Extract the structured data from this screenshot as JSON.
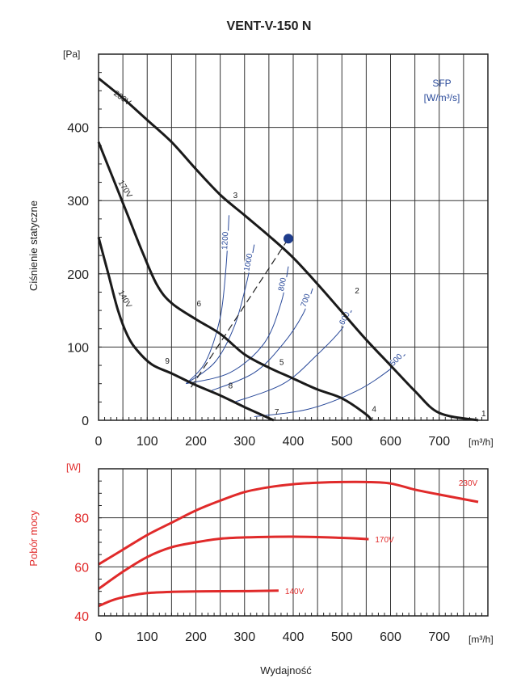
{
  "title": "VENT-V-150 N",
  "x_label": "Wydajność",
  "x_unit": "[m³/h]",
  "chart_data": [
    {
      "type": "line",
      "name": "pressure",
      "ylabel": "Ciśnienie statyczne",
      "y_unit": "[Pa]",
      "xlim": [
        0,
        800
      ],
      "ylim": [
        0,
        500
      ],
      "x_ticks": [
        0,
        100,
        200,
        300,
        400,
        500,
        600,
        700
      ],
      "y_ticks": [
        0,
        100,
        200,
        300,
        400
      ],
      "grid": true,
      "series": [
        {
          "name": "230V",
          "points": [
            [
              0,
              467
            ],
            [
              50,
              440
            ],
            [
              100,
              410
            ],
            [
              150,
              380
            ],
            [
              200,
              343
            ],
            [
              250,
              308
            ],
            [
              300,
              280
            ],
            [
              350,
              252
            ],
            [
              400,
              222
            ],
            [
              450,
              186
            ],
            [
              500,
              148
            ],
            [
              550,
              110
            ],
            [
              600,
              75
            ],
            [
              650,
              40
            ],
            [
              700,
              10
            ],
            [
              780,
              0
            ]
          ]
        },
        {
          "name": "170V",
          "points": [
            [
              0,
              380
            ],
            [
              30,
              330
            ],
            [
              60,
              280
            ],
            [
              90,
              230
            ],
            [
              120,
              185
            ],
            [
              150,
              160
            ],
            [
              200,
              138
            ],
            [
              250,
              118
            ],
            [
              300,
              90
            ],
            [
              350,
              72
            ],
            [
              400,
              57
            ],
            [
              450,
              42
            ],
            [
              500,
              30
            ],
            [
              550,
              8
            ],
            [
              560,
              0
            ]
          ]
        },
        {
          "name": "140V",
          "points": [
            [
              0,
              250
            ],
            [
              20,
              200
            ],
            [
              40,
              150
            ],
            [
              60,
              115
            ],
            [
              80,
              95
            ],
            [
              110,
              76
            ],
            [
              150,
              64
            ],
            [
              200,
              48
            ],
            [
              250,
              34
            ],
            [
              300,
              18
            ],
            [
              360,
              0
            ]
          ]
        }
      ],
      "operating_points": [
        {
          "label": "1",
          "x": 780,
          "y": 0
        },
        {
          "label": "2",
          "x": 520,
          "y": 168
        },
        {
          "label": "3",
          "x": 270,
          "y": 298
        },
        {
          "label": "4",
          "x": 555,
          "y": 6
        },
        {
          "label": "5",
          "x": 365,
          "y": 70
        },
        {
          "label": "6",
          "x": 195,
          "y": 150
        },
        {
          "label": "7",
          "x": 355,
          "y": 2
        },
        {
          "label": "8",
          "x": 260,
          "y": 38
        },
        {
          "label": "9",
          "x": 130,
          "y": 72
        }
      ],
      "sfp": {
        "label_line1": "SFP",
        "label_line2": "[W/m³/s]",
        "curves": [
          {
            "value": "1200",
            "points": [
              [
                180,
                50
              ],
              [
                220,
                80
              ],
              [
                250,
                140
              ],
              [
                262,
                210
              ],
              [
                268,
                280
              ]
            ]
          },
          {
            "value": "1000",
            "points": [
              [
                180,
                50
              ],
              [
                240,
                80
              ],
              [
                280,
                130
              ],
              [
                305,
                190
              ],
              [
                320,
                240
              ]
            ]
          },
          {
            "value": "800",
            "points": [
              [
                180,
                50
              ],
              [
                270,
                65
              ],
              [
                340,
                105
              ],
              [
                375,
                160
              ],
              [
                390,
                210
              ]
            ]
          },
          {
            "value": "700",
            "points": [
              [
                230,
                40
              ],
              [
                320,
                65
              ],
              [
                380,
                105
              ],
              [
                420,
                145
              ],
              [
                440,
                180
              ]
            ]
          },
          {
            "value": "600",
            "points": [
              [
                280,
                25
              ],
              [
                380,
                50
              ],
              [
                450,
                90
              ],
              [
                500,
                125
              ],
              [
                520,
                150
              ]
            ]
          },
          {
            "value": "500",
            "points": [
              [
                320,
                5
              ],
              [
                430,
                15
              ],
              [
                530,
                40
              ],
              [
                600,
                70
              ],
              [
                630,
                90
              ]
            ]
          }
        ]
      },
      "marker": {
        "x": 390,
        "y": 248,
        "color": "#1e3c8c"
      },
      "dashed_line": [
        [
          190,
          45
        ],
        [
          390,
          248
        ]
      ]
    },
    {
      "type": "line",
      "name": "power",
      "ylabel": "Pobór mocy",
      "y_unit": "[W]",
      "xlim": [
        0,
        800
      ],
      "ylim": [
        40,
        100
      ],
      "x_ticks": [
        0,
        100,
        200,
        300,
        400,
        500,
        600,
        700
      ],
      "y_ticks": [
        40,
        60,
        80
      ],
      "grid": true,
      "color": "#e02a2a",
      "series": [
        {
          "name": "230V",
          "points": [
            [
              0,
              61
            ],
            [
              50,
              67
            ],
            [
              100,
              73
            ],
            [
              150,
              78
            ],
            [
              200,
              83
            ],
            [
              250,
              87
            ],
            [
              300,
              90.5
            ],
            [
              350,
              92.5
            ],
            [
              400,
              93.7
            ],
            [
              450,
              94.3
            ],
            [
              500,
              94.6
            ],
            [
              550,
              94.6
            ],
            [
              600,
              94.0
            ],
            [
              650,
              91.5
            ],
            [
              700,
              89.5
            ],
            [
              780,
              86.5
            ]
          ]
        },
        {
          "name": "170V",
          "points": [
            [
              0,
              51
            ],
            [
              50,
              58
            ],
            [
              100,
              64
            ],
            [
              150,
              68
            ],
            [
              200,
              70
            ],
            [
              250,
              71.5
            ],
            [
              300,
              72
            ],
            [
              400,
              72.3
            ],
            [
              500,
              71.8
            ],
            [
              555,
              71.3
            ]
          ]
        },
        {
          "name": "140V",
          "points": [
            [
              0,
              44
            ],
            [
              30,
              46.5
            ],
            [
              60,
              48
            ],
            [
              100,
              49.3
            ],
            [
              150,
              49.8
            ],
            [
              200,
              50
            ],
            [
              300,
              50.1
            ],
            [
              370,
              50.3
            ]
          ]
        }
      ]
    }
  ]
}
